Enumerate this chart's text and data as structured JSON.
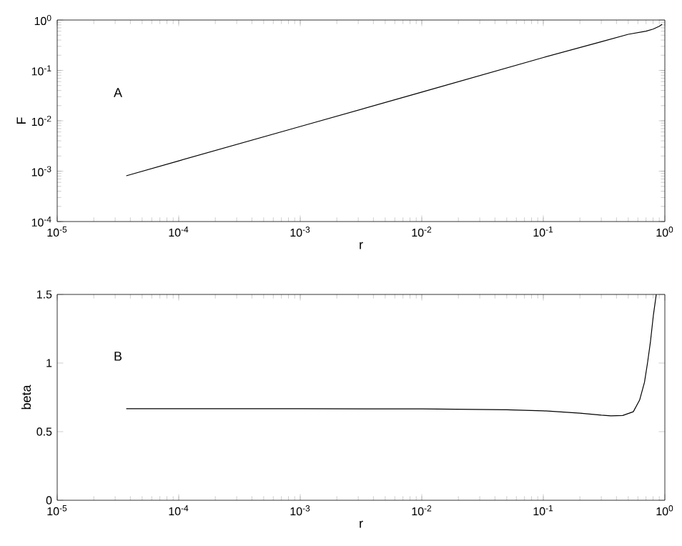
{
  "chart_data": [
    {
      "type": "line",
      "xlabel": "r",
      "ylabel": "F",
      "log": "xy",
      "annotations": [
        "A"
      ],
      "x": [
        3.7e-05,
        0.0001,
        0.001,
        0.01,
        0.1,
        0.3,
        0.5,
        0.7,
        0.8,
        0.9,
        0.95
      ],
      "series": [
        {
          "color": "#000000",
          "values": [
            0.00081,
            0.0016,
            0.0077,
            0.037,
            0.18,
            0.37,
            0.52,
            0.6,
            0.66,
            0.75,
            0.82
          ]
        }
      ],
      "xlim": [
        1e-05,
        1
      ],
      "ylim": [
        0.0001,
        1
      ],
      "xticks": [
        {
          "value": 1e-05,
          "label": "10$^{-5}$"
        },
        {
          "value": 0.0001,
          "label": "10$^{-4}$"
        },
        {
          "value": 0.001,
          "label": "10$^{-3}$"
        },
        {
          "value": 0.01,
          "label": "10$^{-2}$"
        },
        {
          "value": 0.1,
          "label": "10$^{-1}$"
        },
        {
          "value": 1,
          "label": "10$^{0}$"
        }
      ],
      "yticks": [
        {
          "value": 0.0001,
          "label": "10$^{-4}$"
        },
        {
          "value": 0.001,
          "label": "10$^{-3}$"
        },
        {
          "value": 0.01,
          "label": "10$^{-2}$"
        },
        {
          "value": 0.1,
          "label": "10$^{-1}$"
        },
        {
          "value": 1,
          "label": "10$^{0}$"
        }
      ]
    },
    {
      "type": "line",
      "xlabel": "r",
      "ylabel": "beta",
      "log": "x",
      "annotations": [
        "B"
      ],
      "x": [
        3.7e-05,
        0.0001,
        0.001,
        0.01,
        0.05,
        0.1,
        0.2,
        0.3,
        0.36,
        0.45,
        0.55,
        0.62,
        0.68,
        0.72,
        0.76,
        0.805,
        0.85
      ],
      "series": [
        {
          "color": "#000000",
          "values": [
            0.667,
            0.667,
            0.667,
            0.666,
            0.66,
            0.652,
            0.635,
            0.62,
            0.615,
            0.618,
            0.645,
            0.73,
            0.86,
            1.0,
            1.15,
            1.35,
            1.5
          ]
        }
      ],
      "xlim": [
        1e-05,
        1
      ],
      "ylim": [
        0,
        1.5
      ],
      "xticks": [
        {
          "value": 1e-05,
          "label": "10$^{-5}$"
        },
        {
          "value": 0.0001,
          "label": "10$^{-4}$"
        },
        {
          "value": 0.001,
          "label": "10$^{-3}$"
        },
        {
          "value": 0.01,
          "label": "10$^{-2}$"
        },
        {
          "value": 0.1,
          "label": "10$^{-1}$"
        },
        {
          "value": 1,
          "label": "10$^{0}$"
        }
      ],
      "yticks": [
        0,
        0.5,
        1,
        1.5
      ]
    }
  ]
}
